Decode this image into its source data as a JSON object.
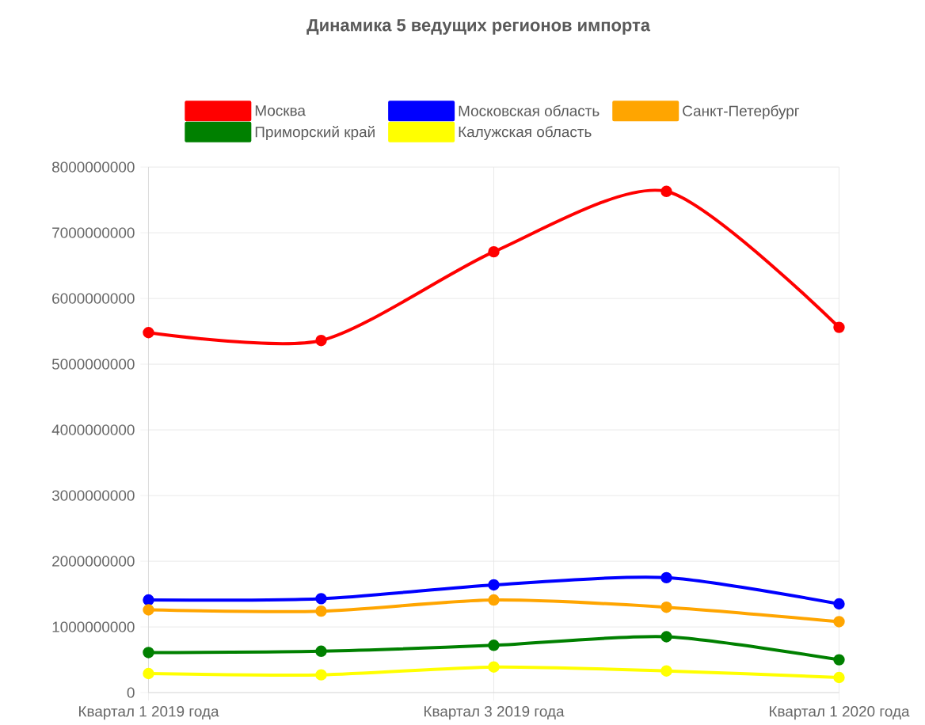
{
  "chart_data": {
    "type": "line",
    "title": "Динамика 5 ведущих регионов импорта",
    "categories": [
      "Квартал 1 2019 года",
      null,
      "Квартал 3 2019 года",
      null,
      "Квартал 1 2020 года"
    ],
    "series": [
      {
        "name": "Москва",
        "color": "#ff0000",
        "values": [
          5480000000,
          5360000000,
          6710000000,
          7630000000,
          5560000000
        ]
      },
      {
        "name": "Московская область",
        "color": "#0000ff",
        "values": [
          1410000000,
          1430000000,
          1640000000,
          1750000000,
          1350000000
        ]
      },
      {
        "name": "Санкт-Петербург",
        "color": "#ffa500",
        "values": [
          1260000000,
          1240000000,
          1410000000,
          1300000000,
          1080000000
        ]
      },
      {
        "name": "Приморский край",
        "color": "#008000",
        "values": [
          610000000,
          630000000,
          720000000,
          850000000,
          500000000
        ]
      },
      {
        "name": "Калужская область",
        "color": "#ffff00",
        "values": [
          290000000,
          270000000,
          390000000,
          330000000,
          230000000
        ]
      }
    ],
    "ylim": [
      0,
      8000000000
    ],
    "yticks": [
      0,
      1000000000,
      2000000000,
      3000000000,
      4000000000,
      5000000000,
      6000000000,
      7000000000,
      8000000000
    ],
    "grid": true,
    "legend": "top",
    "marker": "circle",
    "line_style": "solid"
  }
}
